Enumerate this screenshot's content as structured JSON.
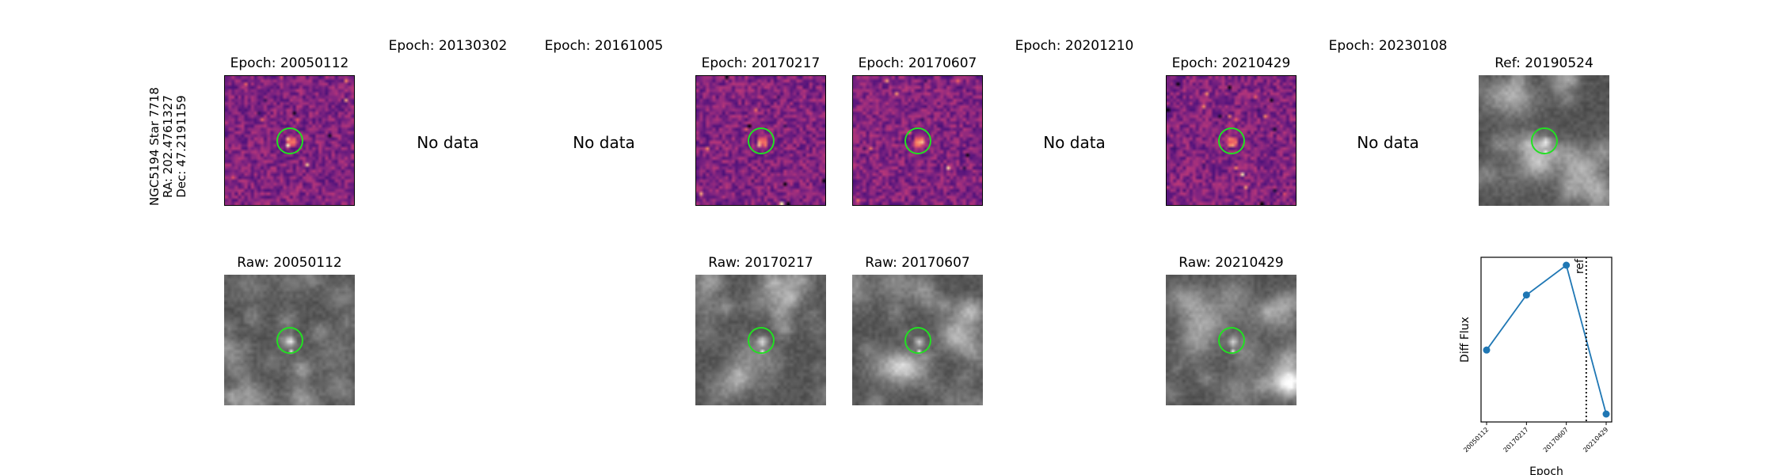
{
  "star": {
    "name_line": "NGC5194 Star 7718",
    "ra_line": "RA: 202.4761327",
    "dec_line": "Dec: 47.2191159"
  },
  "no_data_text": "No data",
  "diff_row": [
    {
      "title": "Epoch: 20050112",
      "has_data": true
    },
    {
      "title": "Epoch: 20130302",
      "has_data": false
    },
    {
      "title": "Epoch: 20161005",
      "has_data": false
    },
    {
      "title": "Epoch: 20170217",
      "has_data": true
    },
    {
      "title": "Epoch: 20170607",
      "has_data": true
    },
    {
      "title": "Epoch: 20201210",
      "has_data": false
    },
    {
      "title": "Epoch: 20210429",
      "has_data": true
    },
    {
      "title": "Epoch: 20230108",
      "has_data": false
    }
  ],
  "ref_panel": {
    "title": "Ref: 20190524"
  },
  "raw_row": [
    {
      "title": "Raw: 20050112",
      "slot": 0
    },
    {
      "title": "Raw: 20170217",
      "slot": 3
    },
    {
      "title": "Raw: 20170607",
      "slot": 4
    },
    {
      "title": "Raw: 20210429",
      "slot": 6
    }
  ],
  "colors": {
    "aperture": "#22e022",
    "series": "#1f77b4",
    "diff_colormap": "magma",
    "raw_colormap": "gray"
  },
  "chart_data": {
    "type": "line",
    "categories": [
      "20050112",
      "20170217",
      "20170607",
      "20210429"
    ],
    "series": [
      {
        "values": [
          0.35,
          0.72,
          0.92,
          -0.08
        ]
      }
    ],
    "ref_marker": {
      "label": "ref",
      "date": "20190524",
      "style": "dotted"
    },
    "xlabel": "Epoch",
    "ylabel": "Diff Flux",
    "yticks_shown": false
  }
}
